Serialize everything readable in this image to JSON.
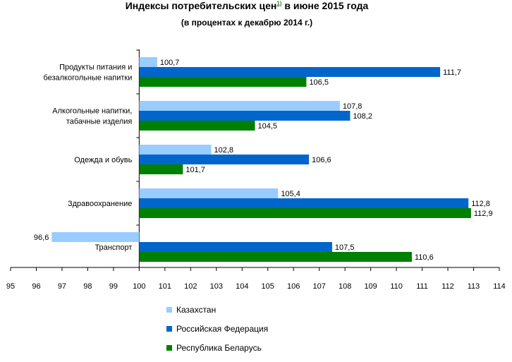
{
  "chart_data": {
    "type": "bar",
    "orientation": "horizontal",
    "title": "Индексы потребительских цен",
    "title_footnote": "1)",
    "title_suffix": "в июне 2015 года",
    "subtitle": "(в процентах  к декабрю 2014  г.)",
    "categories": [
      [
        "Продукты питания и",
        "безалкогольные напитки"
      ],
      [
        "Алкогольные напитки,",
        "табачные изделия"
      ],
      [
        "Одежда и обувь"
      ],
      [
        "Здравоохранение"
      ],
      [
        "Транспорт"
      ]
    ],
    "series": [
      {
        "name": "Казахстан",
        "color": "#99ccff",
        "values": [
          100.7,
          107.8,
          102.8,
          105.4,
          96.6
        ],
        "labels": [
          "100,7",
          "107,8",
          "102,8",
          "105,4",
          "96,6"
        ]
      },
      {
        "name": "Российская Федерация",
        "color": "#0066cc",
        "values": [
          111.7,
          108.2,
          106.6,
          112.8,
          107.5
        ],
        "labels": [
          "111,7",
          "108,2",
          "106,6",
          "112,8",
          "107,5"
        ]
      },
      {
        "name": "Республика Беларусь",
        "color": "#008000",
        "values": [
          106.5,
          104.5,
          101.7,
          112.9,
          110.6
        ],
        "labels": [
          "106,5",
          "104,5",
          "101,7",
          "112,9",
          "110,6"
        ]
      }
    ],
    "xlim": [
      95,
      114
    ],
    "baseline": 100,
    "xticks": [
      95,
      96,
      97,
      98,
      99,
      100,
      101,
      102,
      103,
      104,
      105,
      106,
      107,
      108,
      109,
      110,
      111,
      112,
      113,
      114
    ],
    "legend_position": "bottom",
    "grid": false
  }
}
